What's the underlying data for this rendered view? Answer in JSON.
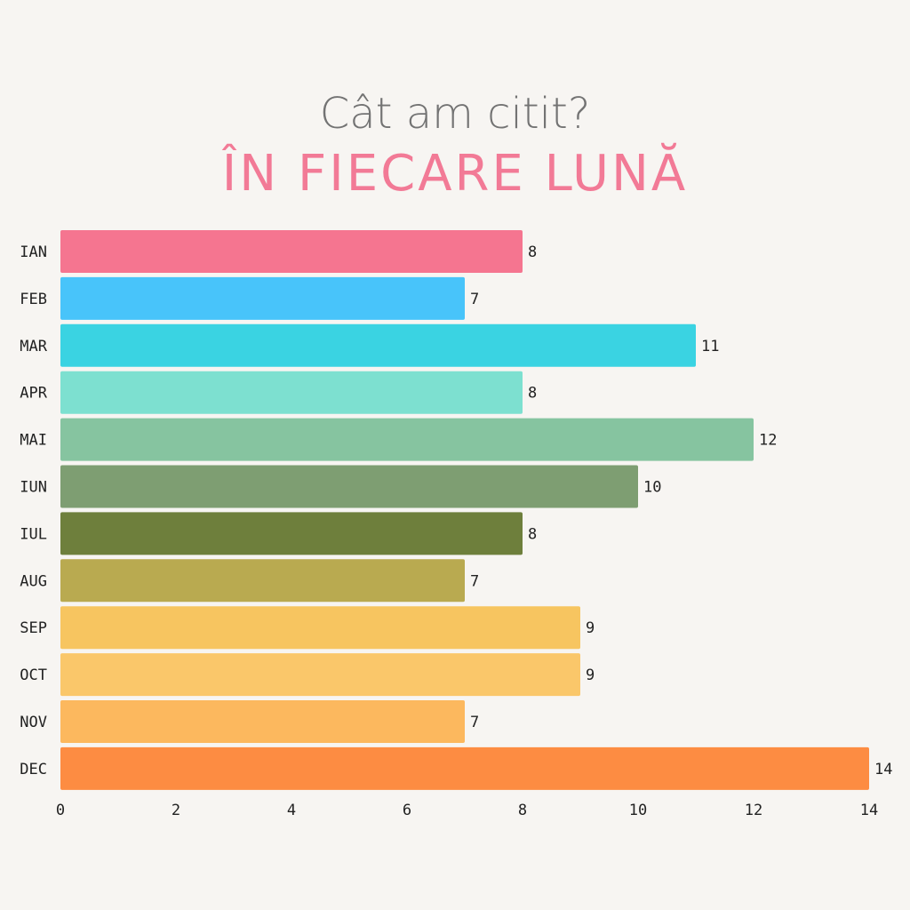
{
  "chart_data": {
    "type": "bar",
    "orientation": "horizontal",
    "title": "Cât am citit?",
    "subtitle": "ÎN FIECARE LUNĂ",
    "categories": [
      "IAN",
      "FEB",
      "MAR",
      "APR",
      "MAI",
      "IUN",
      "IUL",
      "AUG",
      "SEP",
      "OCT",
      "NOV",
      "DEC"
    ],
    "values": [
      8,
      7,
      11,
      8,
      12,
      10,
      8,
      7,
      9,
      9,
      7,
      14
    ],
    "colors": [
      "#f57590",
      "#48c4fa",
      "#3ad3e2",
      "#7de0d0",
      "#86c4a0",
      "#7e9e72",
      "#6e7f3c",
      "#b9aa50",
      "#f7c560",
      "#fac76a",
      "#fcb85e",
      "#fd8c42"
    ],
    "xticks": [
      0,
      2,
      4,
      6,
      8,
      10,
      12,
      14
    ],
    "xlim": [
      0,
      14
    ],
    "xlabel": "",
    "ylabel": "",
    "grid": false,
    "data_labels": true
  }
}
